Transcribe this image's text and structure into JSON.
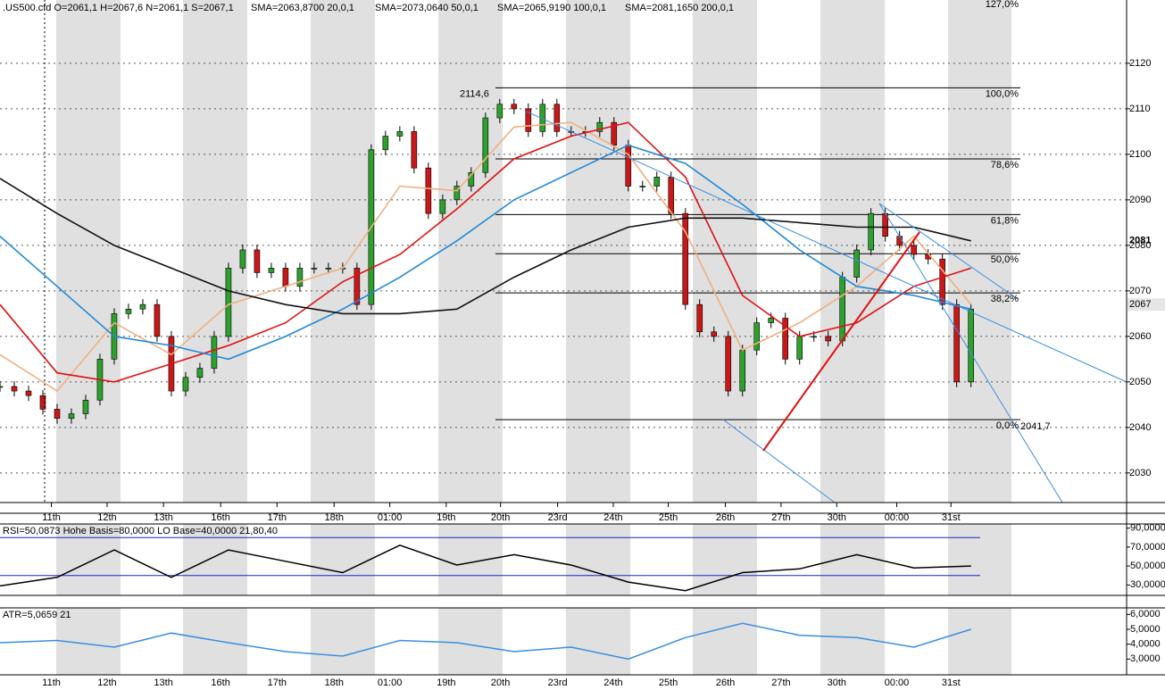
{
  "chart_data": [
    {
      "type": "candlestick",
      "title": ".US500.cfd O=2061,1 H=2067,6 N=2061,1 S=2067,1",
      "values": [
        2049,
        2048,
        2047,
        2044,
        2042,
        2043,
        2046,
        2055,
        2065,
        2066,
        2067,
        2060,
        2048,
        2051,
        2053,
        2060,
        2075,
        2079,
        2074,
        2075,
        2071,
        2075,
        2075,
        2075,
        2075,
        2067,
        2101,
        2104,
        2105,
        2097,
        2087,
        2090,
        2093,
        2096,
        2108,
        2111,
        2110,
        2105,
        2111,
        2105,
        2105,
        2105,
        2107,
        2102,
        2093,
        2093,
        2095,
        2087,
        2067,
        2061,
        2060,
        2048,
        2057,
        2063,
        2064,
        2055,
        2060,
        2060,
        2059,
        2073,
        2079,
        2087,
        2082,
        2080,
        2078,
        2077,
        2067,
        2050,
        2066
      ],
      "xlim": [
        0,
        78.9
      ],
      "xticks": [
        {
          "value": 3.6,
          "label": "11th"
        },
        {
          "value": 7.5,
          "label": "12th"
        },
        {
          "value": 11.45,
          "label": "13th"
        },
        {
          "value": 15.45,
          "label": "16th"
        },
        {
          "value": 19.4,
          "label": "17th"
        },
        {
          "value": 23.4,
          "label": "18th"
        },
        {
          "value": 27.3,
          "label": "01:00"
        },
        {
          "value": 31.25,
          "label": "19th"
        },
        {
          "value": 35.05,
          "label": "20th"
        },
        {
          "value": 39.05,
          "label": "23rd"
        },
        {
          "value": 42.95,
          "label": "24th"
        },
        {
          "value": 46.8,
          "label": "25th"
        },
        {
          "value": 50.8,
          "label": "26th"
        },
        {
          "value": 54.7,
          "label": "27th"
        },
        {
          "value": 58.6,
          "label": "30th"
        },
        {
          "value": 62.8,
          "label": "00:00"
        },
        {
          "value": 66.6,
          "label": "31st"
        }
      ],
      "ylim": [
        2023.5,
        2133.9
      ],
      "yticks": [
        2030,
        2040,
        2050,
        2060,
        2070,
        2080,
        2090,
        2100,
        2110,
        2120
      ],
      "grid": true,
      "series": [
        {
          "name": "SMA=2063,8700  20,0,1",
          "color": "#f0b080",
          "x": [
            0,
            4,
            8,
            12,
            16,
            20,
            24,
            28,
            32,
            36,
            40,
            44,
            48,
            52,
            56,
            60,
            64,
            68
          ],
          "values": [
            2056,
            2048,
            2063,
            2056,
            2067,
            2071,
            2075,
            2093,
            2092,
            2106,
            2107,
            2100,
            2083,
            2057,
            2063,
            2071,
            2082,
            2067
          ]
        },
        {
          "name": "SMA=2073,0640  50,0,1",
          "color": "#e01010",
          "x": [
            0,
            4,
            8,
            12,
            16,
            20,
            24,
            28,
            32,
            36,
            40,
            44,
            48,
            52,
            56,
            60,
            64,
            68
          ],
          "values": [
            2067,
            2052,
            2050,
            2054,
            2058,
            2063,
            2072,
            2078,
            2088,
            2099,
            2104,
            2107,
            2095,
            2069,
            2060,
            2063,
            2071,
            2075
          ]
        },
        {
          "name": "SMA=2065,9190  100,0,1",
          "color": "#1e88d8",
          "x": [
            0,
            4,
            8,
            12,
            16,
            20,
            24,
            28,
            32,
            36,
            40,
            44,
            48,
            52,
            56,
            60,
            64,
            68
          ],
          "values": [
            2082,
            2071,
            2060,
            2058,
            2055,
            2060,
            2066,
            2073,
            2081,
            2090,
            2096,
            2102,
            2098,
            2089,
            2079,
            2071,
            2069,
            2066
          ]
        },
        {
          "name": "SMA=2081,1650  200,0,1",
          "color": "#111111",
          "x": [
            0,
            4,
            8,
            12,
            16,
            20,
            24,
            28,
            32,
            36,
            40,
            44,
            48,
            52,
            56,
            60,
            64,
            68
          ],
          "values": [
            2094.7,
            2087,
            2080,
            2075,
            2070,
            2067,
            2065,
            2065,
            2066,
            2073,
            2079,
            2084,
            2086,
            2086,
            2085,
            2084,
            2084,
            2081
          ]
        }
      ],
      "fib_high": {
        "value": 2114.6,
        "label": "2114,6"
      },
      "fib_low": {
        "value": 2041.7,
        "label": "2041,7"
      },
      "fib_levels": [
        {
          "value": 127,
          "label": "127,0%"
        },
        {
          "value": 100,
          "label": "100,0%"
        },
        {
          "value": 78.6,
          "label": "78,6%"
        },
        {
          "value": 61.8,
          "label": "61,8%"
        },
        {
          "value": 50,
          "label": "50,0%"
        },
        {
          "value": 38.2,
          "label": "38,2%"
        },
        {
          "value": 0,
          "label": "0,0%"
        }
      ],
      "sma200_last": 2081,
      "last_price": 2067
    },
    {
      "type": "line",
      "title": "RSI=50,0873  Hohe Basis=80,0000 LO Base=40,0000  21,80,40",
      "x": [
        0,
        4,
        8,
        12,
        16,
        20,
        24,
        28,
        32,
        36,
        40,
        44,
        48,
        52,
        56,
        60,
        64,
        68
      ],
      "values": [
        29,
        38,
        67,
        38,
        67,
        55,
        43,
        72,
        51,
        62,
        51,
        33,
        24,
        43,
        47,
        62,
        48,
        50
      ],
      "color": "#000000",
      "levels": [
        80,
        40
      ],
      "ylim": [
        19,
        94.4
      ],
      "yticks": [
        {
          "value": 30,
          "label": "30,0000"
        },
        {
          "value": 50,
          "label": "50,0000"
        },
        {
          "value": 70,
          "label": "70,0000"
        },
        {
          "value": 90,
          "label": "90,0000"
        }
      ]
    },
    {
      "type": "line",
      "title": "ATR=5,0659  21",
      "x": [
        0,
        4,
        8,
        12,
        16,
        20,
        24,
        28,
        32,
        36,
        40,
        44,
        48,
        52,
        56,
        60,
        64,
        68
      ],
      "values": [
        4.1,
        4.25,
        3.8,
        4.75,
        4.1,
        3.5,
        3.2,
        4.25,
        4.1,
        3.5,
        3.8,
        3.0,
        4.44,
        5.4,
        4.6,
        4.44,
        3.8,
        5.0
      ],
      "color": "#3a8ee0",
      "ylim": [
        1.94,
        6.44
      ],
      "yticks": [
        {
          "value": 3,
          "label": "3,0000"
        },
        {
          "value": 4,
          "label": "4,0000"
        },
        {
          "value": 5,
          "label": "5,0000"
        },
        {
          "value": 6,
          "label": "6,0000"
        }
      ]
    }
  ]
}
